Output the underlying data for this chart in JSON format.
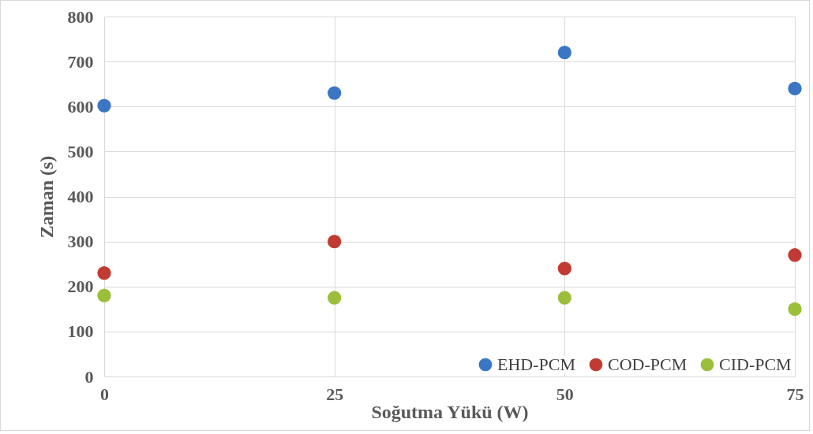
{
  "chart_data": {
    "type": "scatter",
    "xlabel": "Soğutma Yükü (W)",
    "ylabel": "Zaman (s)",
    "x": [
      0,
      25,
      50,
      75
    ],
    "series": [
      {
        "name": "EHD-PCM",
        "color": "#3b76c4",
        "values": [
          602,
          630,
          720,
          640
        ]
      },
      {
        "name": "COD-PCM",
        "color": "#c23b33",
        "values": [
          230,
          300,
          240,
          270
        ]
      },
      {
        "name": "CID-PCM",
        "color": "#9cbf3b",
        "values": [
          180,
          175,
          175,
          150
        ]
      }
    ],
    "xlim": [
      0,
      75
    ],
    "xticks": [
      0,
      25,
      50,
      75
    ],
    "ylim": [
      0,
      800
    ],
    "yticks": [
      0,
      100,
      200,
      300,
      400,
      500,
      600,
      700,
      800
    ],
    "grid": true,
    "legend": "bottom right",
    "marker": "circle"
  }
}
